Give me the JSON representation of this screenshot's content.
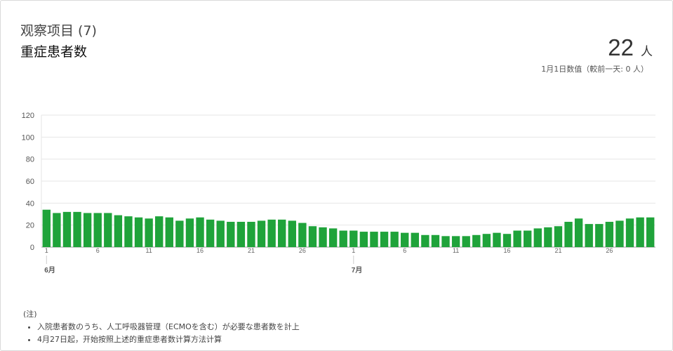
{
  "header": {
    "category": "观察项目 (7)",
    "title": "重症患者数"
  },
  "summary": {
    "value": "22",
    "unit": "人",
    "subtitle": "1月1日数值（較前一天: 0 人）"
  },
  "notes": {
    "label": "(注)",
    "items": [
      "入院患者数のうち、人工呼吸器管理（ECMOを含む）が必要な患者数を計上",
      "4月27日起，开始按照上述的重症患者数计算方法计算"
    ]
  },
  "colors": {
    "bar": "#1fa33a",
    "grid": "#e6e6e6",
    "axis": "#999999"
  },
  "chart_data": {
    "type": "bar",
    "title": "",
    "xlabel": "",
    "ylabel": "",
    "ylim": [
      0,
      120
    ],
    "yticks": [
      0,
      20,
      40,
      60,
      80,
      100,
      120
    ],
    "months": [
      {
        "label": "6月",
        "start_index": 0
      },
      {
        "label": "7月",
        "start_index": 30
      }
    ],
    "tick_days": [
      1,
      6,
      11,
      16,
      21,
      26
    ],
    "days": [
      1,
      2,
      3,
      4,
      5,
      6,
      7,
      8,
      9,
      10,
      11,
      12,
      13,
      14,
      15,
      16,
      17,
      18,
      19,
      20,
      21,
      22,
      23,
      24,
      25,
      26,
      27,
      28,
      29,
      30,
      1,
      2,
      3,
      4,
      5,
      6,
      7,
      8,
      9,
      10,
      11,
      12,
      13,
      14,
      15,
      16,
      17,
      18,
      19,
      20,
      21,
      22,
      23,
      24,
      25,
      26,
      27,
      28,
      29,
      30
    ],
    "values": [
      34,
      31,
      32,
      32,
      31,
      31,
      31,
      29,
      28,
      27,
      26,
      28,
      27,
      24,
      26,
      27,
      25,
      24,
      23,
      23,
      23,
      24,
      25,
      25,
      24,
      22,
      19,
      18,
      17,
      15,
      15,
      14,
      14,
      14,
      14,
      13,
      13,
      11,
      11,
      10,
      10,
      10,
      11,
      12,
      13,
      12,
      15,
      15,
      17,
      18,
      19,
      23,
      26,
      21,
      21,
      23,
      24,
      26,
      27,
      27
    ]
  }
}
